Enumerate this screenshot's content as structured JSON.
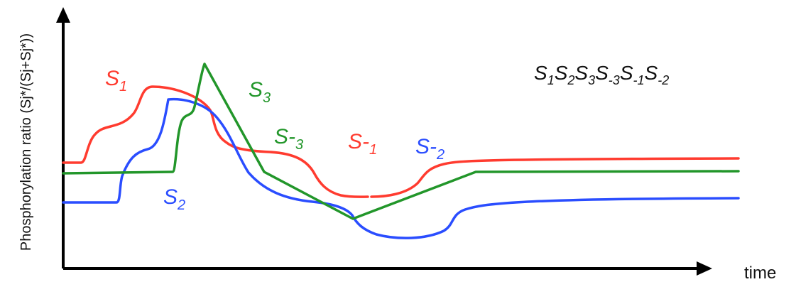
{
  "chart_data": {
    "type": "line",
    "title": "",
    "xlabel": "time",
    "ylabel": "Phosphorylation  ratio (Sj*/(Sj+Sj*))",
    "grid": false,
    "legend": "none",
    "sequence": {
      "parts": [
        {
          "base": "S",
          "sub": "1"
        },
        {
          "base": "S",
          "sub": "2"
        },
        {
          "base": "S",
          "sub": "3"
        },
        {
          "base": "S",
          "sub": "-3"
        },
        {
          "base": "S",
          "sub": "-1"
        },
        {
          "base": "S",
          "sub": "-2"
        }
      ]
    },
    "annotations": [
      {
        "base": "S",
        "sub": "1",
        "color": "#ff3b2f"
      },
      {
        "base": "S",
        "sub": "3",
        "color": "#22962a"
      },
      {
        "base": "S-",
        "sub": "3",
        "color": "#22962a"
      },
      {
        "base": "S-",
        "sub": "1",
        "color": "#ff3b2f"
      },
      {
        "base": "S-",
        "sub": "2",
        "color": "#2a4dff"
      },
      {
        "base": "S",
        "sub": "2",
        "color": "#2a4dff"
      }
    ],
    "series": [
      {
        "key": "s1",
        "color": "#ff3b2f"
      },
      {
        "key": "s2",
        "color": "#2a4dff"
      },
      {
        "key": "s3",
        "color": "#22962a"
      }
    ]
  }
}
